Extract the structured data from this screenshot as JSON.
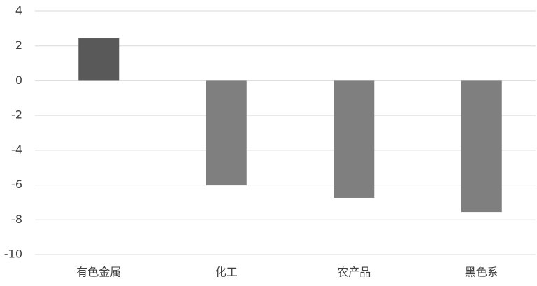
{
  "chart_data": {
    "type": "bar",
    "categories": [
      "有色金属",
      "化工",
      "农产品",
      "黑色系"
    ],
    "values": [
      2.43,
      -6.02,
      -6.74,
      -7.55
    ],
    "colors": [
      "#595959",
      "#7f7f7f",
      "#7f7f7f",
      "#7f7f7f"
    ],
    "ylim": [
      -10,
      4
    ],
    "yticks": [
      -10,
      -8,
      -6,
      -4,
      -2,
      0,
      2,
      4
    ],
    "grid": true
  }
}
